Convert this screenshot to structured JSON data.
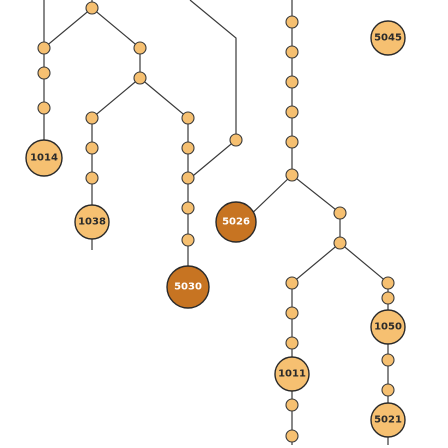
{
  "diagram": {
    "kind": "node-tree",
    "colors": {
      "node_light": "#f6c071",
      "node_dark": "#c77422",
      "edge": "#3a3a3a",
      "background": "#ffffff"
    },
    "labeled_nodes": [
      {
        "id": "n5045",
        "label": "5045",
        "style": "light"
      },
      {
        "id": "n1014",
        "label": "1014",
        "style": "light"
      },
      {
        "id": "n1038",
        "label": "1038",
        "style": "light"
      },
      {
        "id": "n5026",
        "label": "5026",
        "style": "dark"
      },
      {
        "id": "n5030",
        "label": "5030",
        "style": "dark"
      },
      {
        "id": "n1050",
        "label": "1050",
        "style": "light"
      },
      {
        "id": "n1011",
        "label": "1011",
        "style": "light"
      },
      {
        "id": "n5021",
        "label": "5021",
        "style": "light"
      }
    ]
  }
}
